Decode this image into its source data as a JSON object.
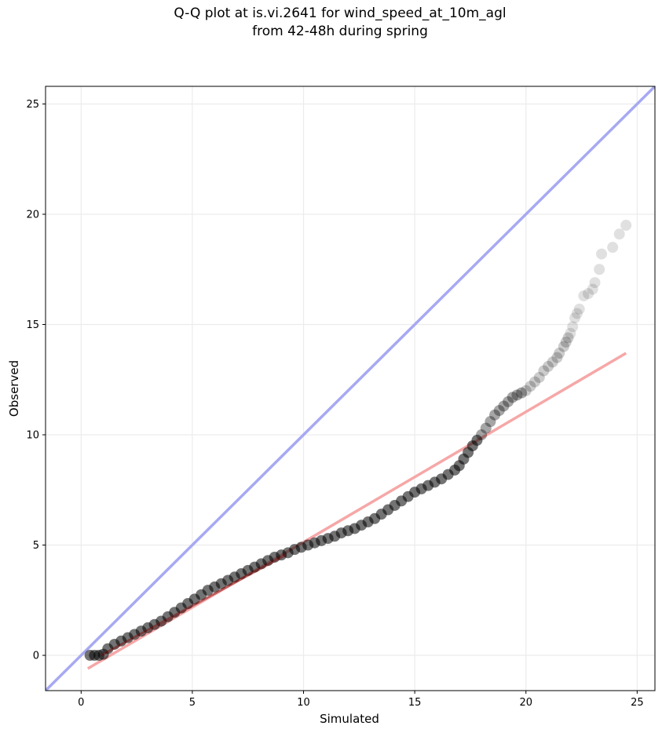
{
  "chart_data": {
    "type": "scatter",
    "title_line1": "Q-Q plot at is.vi.2641 for wind_speed_at_10m_agl",
    "title_line2": "from 42-48h during spring",
    "xlabel": "Simulated",
    "ylabel": "Observed",
    "xlim": [
      -1.6,
      25.8
    ],
    "ylim": [
      -1.6,
      25.8
    ],
    "xticks": [
      0,
      5,
      10,
      15,
      20,
      25
    ],
    "yticks": [
      0,
      5,
      10,
      15,
      20,
      25
    ],
    "grid": true,
    "identity_line": {
      "color": "#a7a9f2"
    },
    "fit_line": {
      "x": [
        0.3,
        24.5
      ],
      "y": [
        -0.6,
        13.7
      ],
      "color": "#f6a7a7"
    },
    "point_color": "#000000",
    "series": [
      {
        "x": [
          0.4,
          0.6,
          0.8,
          1.0,
          1.2,
          1.5,
          1.8,
          2.1,
          2.4,
          2.7,
          3.0,
          3.3,
          3.6,
          3.9,
          4.2,
          4.5,
          4.8,
          5.1,
          5.4,
          5.7,
          6.0,
          6.3,
          6.6,
          6.9,
          7.2,
          7.5,
          7.8,
          8.1,
          8.4,
          8.7,
          9.0,
          9.3,
          9.6,
          9.9,
          10.2,
          10.5,
          10.8,
          11.1,
          11.4,
          11.7,
          12.0,
          12.3,
          12.6,
          12.9,
          13.2,
          13.5,
          13.8,
          14.1,
          14.4,
          14.7,
          15.0,
          15.3,
          15.6,
          15.9,
          16.2,
          16.5,
          16.8,
          17.0,
          17.2,
          17.4,
          17.6,
          17.8,
          18.0,
          18.2,
          18.4,
          18.6,
          18.8,
          19.0,
          19.2,
          19.4,
          19.6,
          19.8,
          20.0,
          20.2,
          20.4,
          20.6,
          20.8,
          21.0,
          21.2,
          21.4,
          21.5,
          21.7,
          21.8,
          21.9,
          22.0,
          22.1,
          22.2,
          22.3,
          22.4,
          22.6,
          22.8,
          23.0,
          23.1,
          23.3,
          23.4,
          23.9,
          24.2,
          24.5
        ],
        "y": [
          0.0,
          0.0,
          0.0,
          0.05,
          0.3,
          0.5,
          0.65,
          0.8,
          0.95,
          1.1,
          1.25,
          1.4,
          1.55,
          1.75,
          1.95,
          2.15,
          2.35,
          2.55,
          2.75,
          2.95,
          3.1,
          3.25,
          3.4,
          3.55,
          3.7,
          3.85,
          4.0,
          4.15,
          4.3,
          4.45,
          4.55,
          4.65,
          4.8,
          4.9,
          5.0,
          5.1,
          5.2,
          5.3,
          5.4,
          5.55,
          5.65,
          5.75,
          5.9,
          6.05,
          6.2,
          6.4,
          6.6,
          6.8,
          7.0,
          7.2,
          7.4,
          7.55,
          7.7,
          7.85,
          8.0,
          8.2,
          8.4,
          8.6,
          8.9,
          9.2,
          9.5,
          9.75,
          10.0,
          10.3,
          10.6,
          10.9,
          11.1,
          11.3,
          11.5,
          11.7,
          11.8,
          11.9,
          12.0,
          12.2,
          12.4,
          12.6,
          12.9,
          13.1,
          13.3,
          13.5,
          13.7,
          14.0,
          14.2,
          14.4,
          14.6,
          14.9,
          15.3,
          15.5,
          15.7,
          16.3,
          16.4,
          16.6,
          16.9,
          17.5,
          18.2,
          18.5,
          19.1,
          19.5
        ]
      }
    ]
  }
}
